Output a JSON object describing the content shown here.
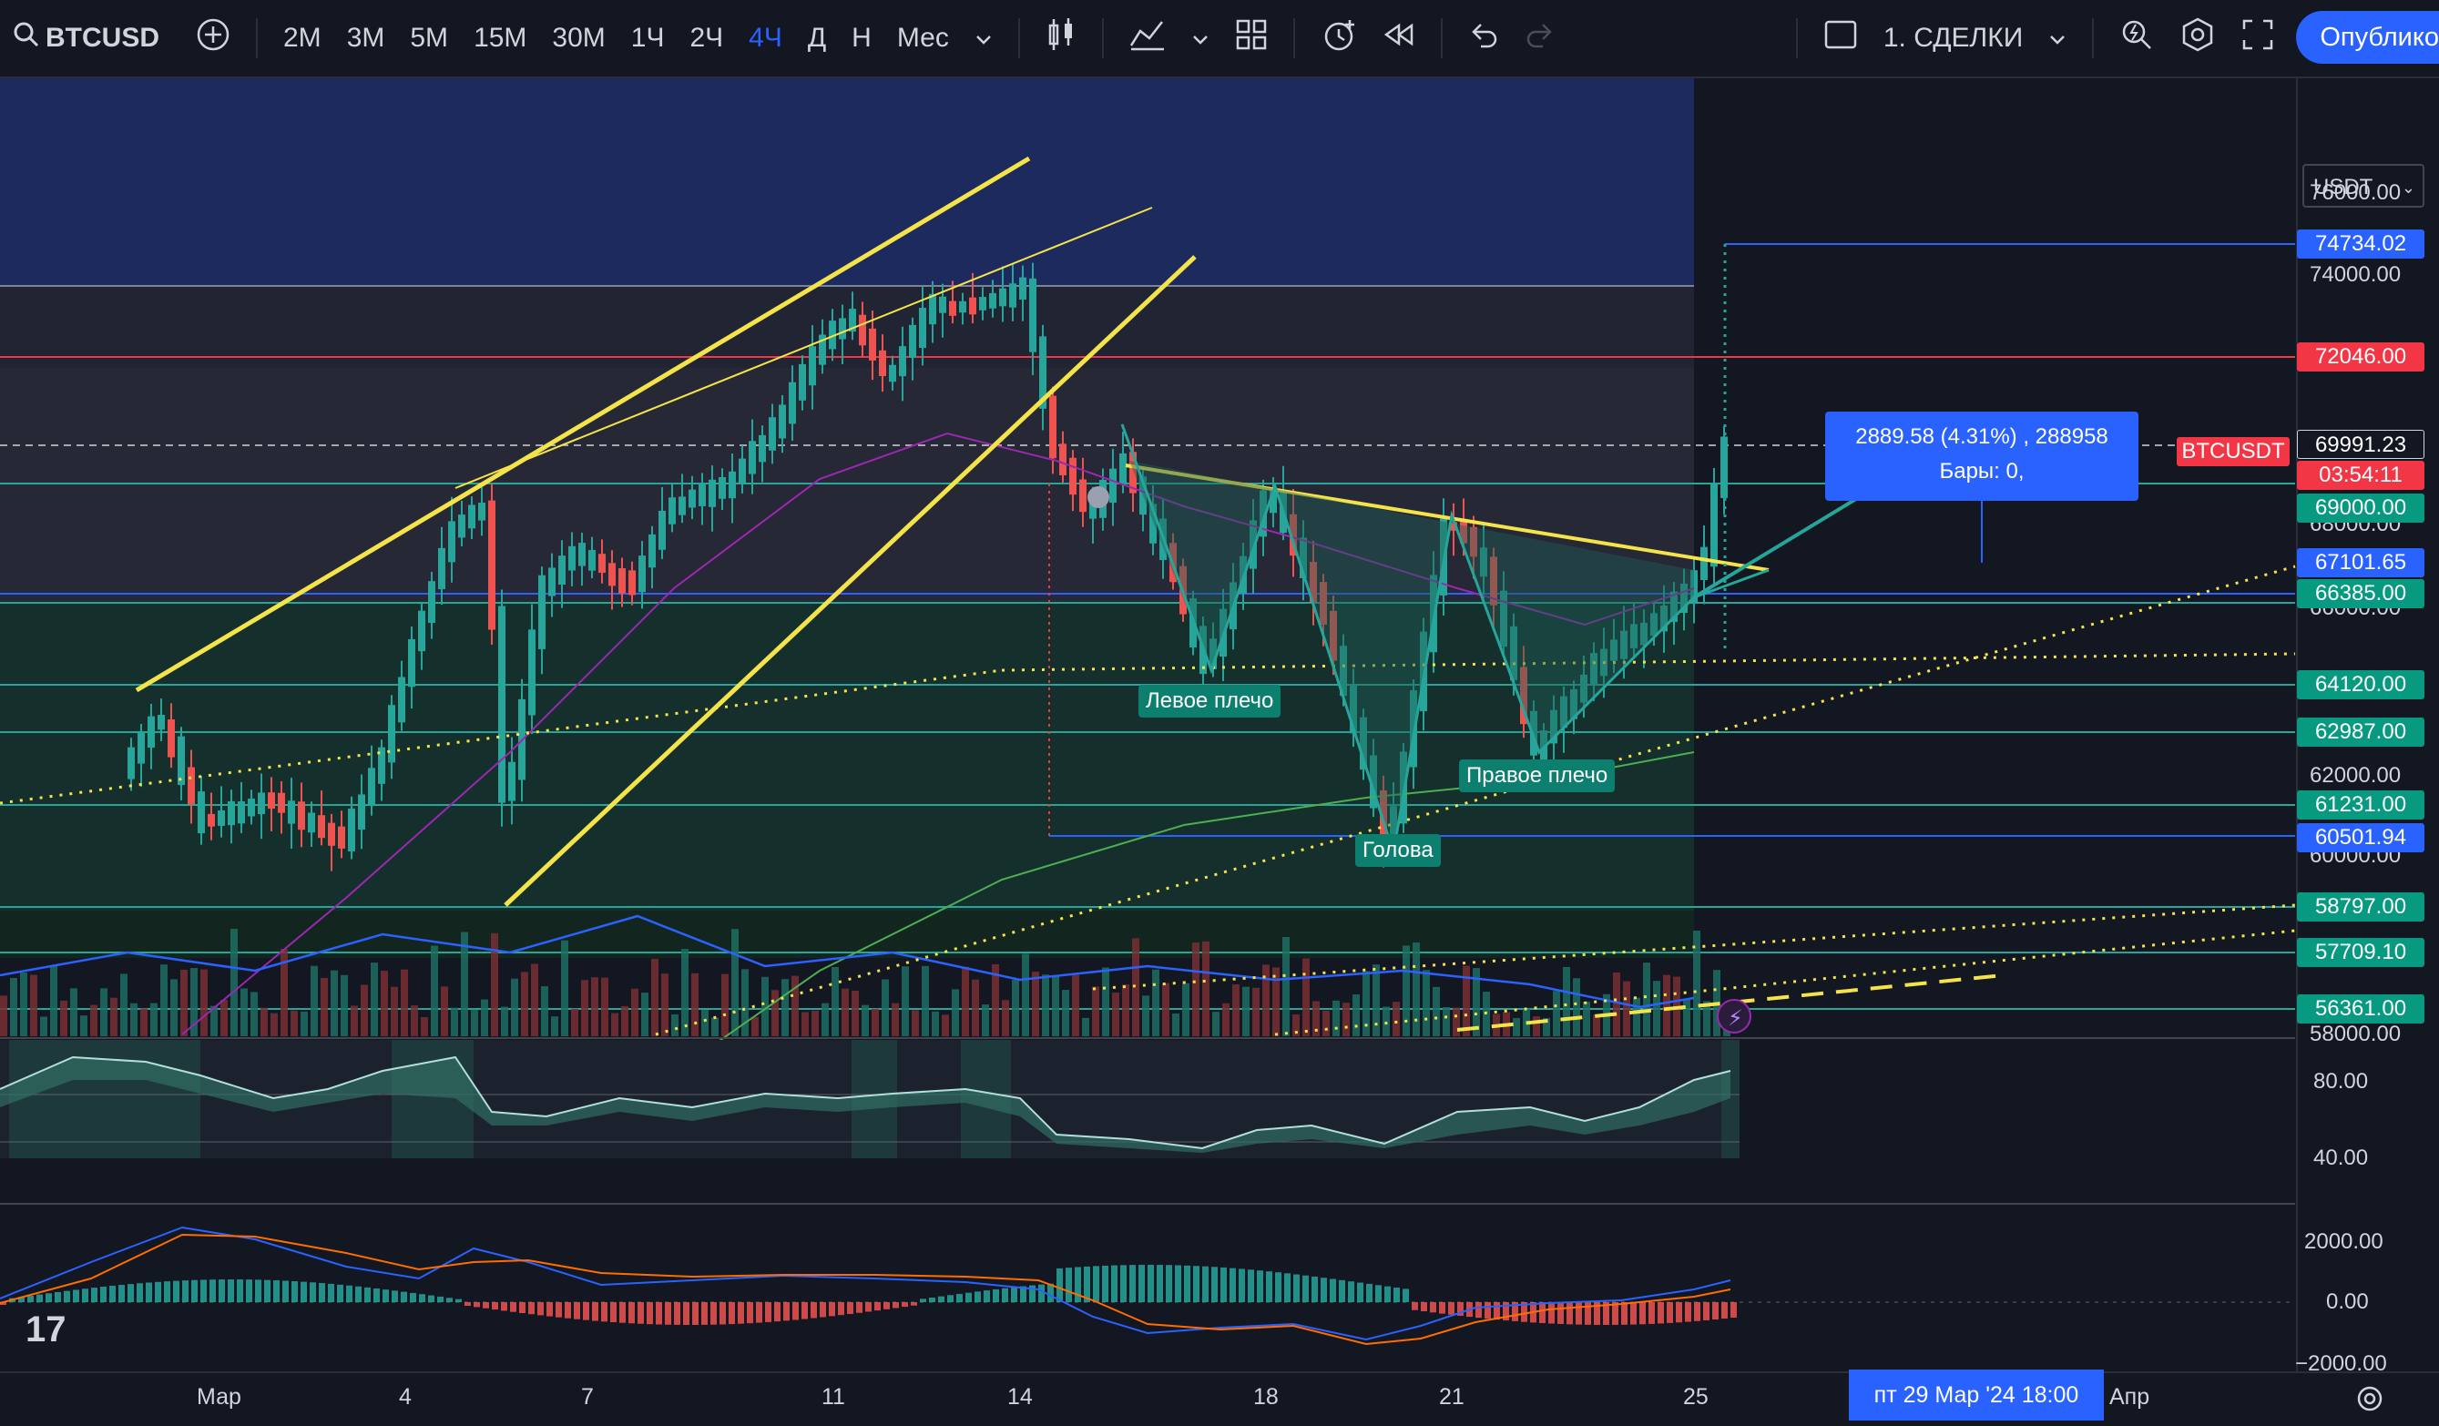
{
  "toolbar": {
    "symbol": "BTCUSD",
    "timeframes": [
      "2M",
      "3M",
      "5M",
      "15M",
      "30M",
      "1Ч",
      "2Ч",
      "4Ч",
      "Д",
      "Н",
      "Мес"
    ],
    "active_timeframe": "4Ч",
    "layout_name": "1. СДЕЛКИ",
    "publish_label": "Опублико"
  },
  "currency_select": "USDT",
  "price_axis": {
    "ticks": [
      "76000.00",
      "74000.00",
      "68000.00",
      "66000.00",
      "62000.00",
      "60000.00",
      "58000.00"
    ],
    "labels": [
      {
        "text": "74734.02",
        "color": "#2962ff"
      },
      {
        "text": "72046.00",
        "color": "#f23645"
      },
      {
        "text": "69991.23",
        "color": "#131722"
      },
      {
        "text": "BTCUSDT",
        "color": "#f23645"
      },
      {
        "text": "03:54:11",
        "color": "#f23645"
      },
      {
        "text": "69000.00",
        "color": "#089981"
      },
      {
        "text": "67101.65",
        "color": "#2962ff"
      },
      {
        "text": "66385.00",
        "color": "#089981"
      },
      {
        "text": "64120.00",
        "color": "#089981"
      },
      {
        "text": "62987.00",
        "color": "#089981"
      },
      {
        "text": "61231.00",
        "color": "#089981"
      },
      {
        "text": "60501.94",
        "color": "#2962ff"
      },
      {
        "text": "58797.00",
        "color": "#089981"
      },
      {
        "text": "57709.10",
        "color": "#089981"
      },
      {
        "text": "56361.00",
        "color": "#089981"
      }
    ]
  },
  "rsi_axis": {
    "ticks": [
      "80.00",
      "40.00"
    ]
  },
  "macd_axis": {
    "ticks": [
      "2000.00",
      "0.00",
      "−2000.00"
    ]
  },
  "measure_tooltip": {
    "line1": "2889.58 (4.31%) , 288958",
    "line2": "Бары: 0,"
  },
  "pattern_labels": {
    "left": "Левое плечо",
    "head": "Голова",
    "right": "Правое плечо"
  },
  "time_axis": {
    "labels": [
      "Мар",
      "4",
      "7",
      "11",
      "14",
      "18",
      "21",
      "25",
      "Апр"
    ],
    "crosshair_date": "пт 29 Мар '24   18:00"
  },
  "logo": "17",
  "colors": {
    "bull": "#26a69a",
    "bear": "#ef5350",
    "accent": "#2962ff",
    "pattern": "#f5e34a"
  }
}
